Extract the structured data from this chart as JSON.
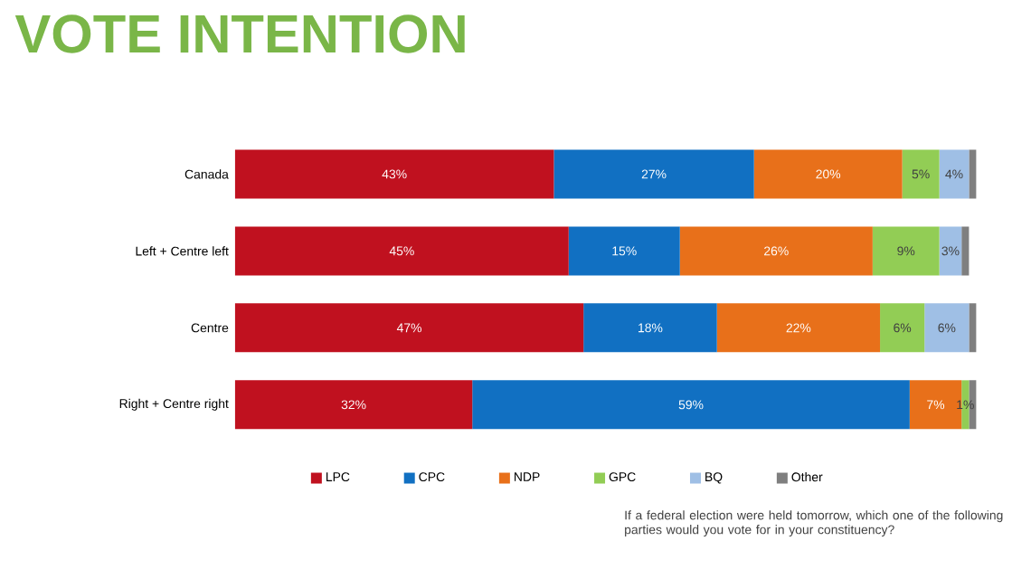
{
  "chart_data": {
    "type": "bar",
    "orientation": "horizontal",
    "stacked": true,
    "title": "VOTE INTENTION",
    "categories": [
      "Canada",
      "Left + Centre left",
      "Centre",
      "Right + Centre right"
    ],
    "series": [
      {
        "name": "LPC",
        "color": "#c0111f",
        "values": [
          43,
          45,
          47,
          32
        ],
        "value_labels": [
          "43%",
          "45%",
          "47%",
          "32%"
        ]
      },
      {
        "name": "CPC",
        "color": "#1170c2",
        "values": [
          27,
          15,
          18,
          59
        ],
        "value_labels": [
          "27%",
          "15%",
          "18%",
          "59%"
        ]
      },
      {
        "name": "NDP",
        "color": "#e8701a",
        "values": [
          20,
          26,
          22,
          7
        ],
        "value_labels": [
          "20%",
          "26%",
          "22%",
          "7%"
        ]
      },
      {
        "name": "GPC",
        "color": "#92cd55",
        "values": [
          5,
          9,
          6,
          1
        ],
        "value_labels": [
          "5%",
          "9%",
          "6%",
          "1%"
        ]
      },
      {
        "name": "BQ",
        "color": "#9fbfe5",
        "values": [
          4,
          3,
          6,
          0
        ],
        "value_labels": [
          "4%",
          "3%",
          "6%",
          null
        ]
      },
      {
        "name": "Other",
        "color": "#7f7f7f",
        "values": [
          1,
          1,
          1,
          1
        ]
      }
    ],
    "legend": "bottom",
    "tick_labels": "y",
    "annotations": [
      "If a federal election were held tomorrow, which one of the following parties would you vote for in your constituency?"
    ]
  }
}
